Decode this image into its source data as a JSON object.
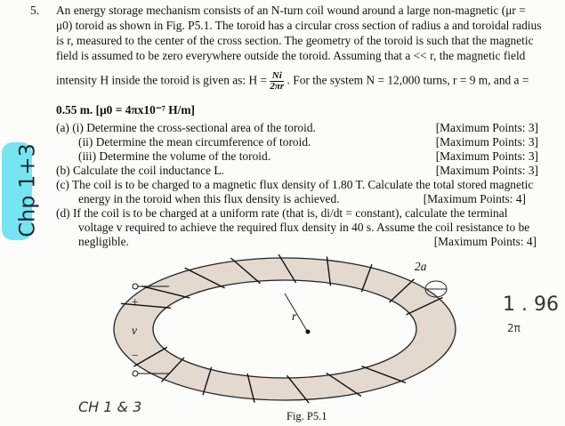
{
  "problem": {
    "number": "5.",
    "lines": [
      "An energy storage mechanism consists of an N-turn coil wound around a large non-magnetic (μr =",
      "μ0) toroid as shown in Fig. P5.1. The toroid has a circular cross section of radius a and toroidal radius",
      "is r, measured to the center of the cross section. The geometry of the toroid is such that the magnetic",
      "field is assumed to be zero everywhere outside the toroid. Assuming that a << r, the magnetic field"
    ],
    "formula_line_before": "intensity H inside the toroid is given as:  H =",
    "formula_num": "Ni",
    "formula_den": "2πr",
    "formula_line_after": ". For the system N = 12,000 turns, r = 9 m, and a =",
    "constants_line": "0.55 m.  [μ0 = 4πx10⁻⁷ H/m]"
  },
  "parts": [
    {
      "label": "(a)  (i)  Determine the cross-sectional area of the toroid.",
      "points": "[Maximum Points: 3]"
    },
    {
      "label": "(ii)  Determine the mean circumference of toroid.",
      "points": "[Maximum Points: 3]"
    },
    {
      "label": "(iii) Determine the volume of the toroid.",
      "points": "[Maximum Points: 3]"
    },
    {
      "label": "(b)  Calculate the coil inductance L.",
      "points": "[Maximum Points: 3]"
    },
    {
      "label": "(c)  The coil is to be charged to a magnetic flux density of 1.80 T. Calculate the total stored magnetic"
    },
    {
      "label": "energy in the toroid when this flux density is achieved.",
      "points": "[Maximum Points: 4]"
    },
    {
      "label": "(d)  If the coil is to be charged at a uniform rate (that is, di/dt = constant), calculate the terminal"
    },
    {
      "label": "voltage v required to achieve the required flux density in 40 s. Assume the coil resistance to be"
    },
    {
      "label": "negligible.",
      "points": "[Maximum Points: 4]"
    }
  ],
  "figure": {
    "caption": "Fig. P5.1",
    "label_2a": "2a",
    "label_r": "r",
    "plus": "+",
    "v": "v",
    "minus": "−",
    "toroid_color": "#e3d9cf"
  },
  "handwriting": {
    "margin_note": "Chp 1+3",
    "bottom_note": "CH 1 & 3",
    "right_top": "1 . 96",
    "right_bottom": "2π",
    "highlight_color": "#5fe0ef"
  }
}
